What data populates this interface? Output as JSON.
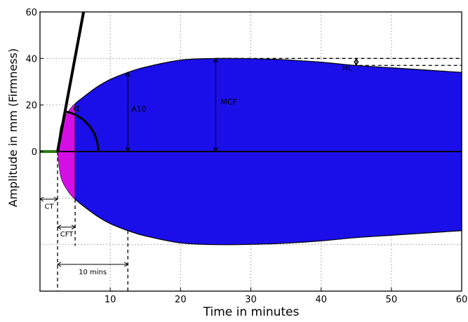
{
  "chart_data": {
    "type": "area",
    "xlabel": "Time in minutes",
    "ylabel": "Amplitude in mm (Firmness)",
    "xlim": [
      0,
      60
    ],
    "ylim": [
      -60,
      60
    ],
    "x_ticks": [
      10,
      20,
      30,
      40,
      50,
      60
    ],
    "y_ticks": [
      0,
      20,
      40,
      60
    ],
    "grid": true,
    "clot_envelope": {
      "x": [
        2.5,
        3,
        4,
        5,
        6,
        8,
        10,
        12.5,
        15,
        20,
        25,
        30,
        35,
        40,
        45,
        50,
        55,
        60
      ],
      "upper": [
        0,
        11,
        17,
        20.5,
        23,
        27.5,
        31,
        34,
        36.3,
        39.3,
        40,
        39.9,
        39.4,
        38.4,
        37,
        36,
        35,
        34
      ],
      "lower": [
        0,
        -11,
        -17,
        -20.5,
        -23,
        -27.5,
        -31,
        -34,
        -36.3,
        -39.3,
        -40,
        -39.9,
        -39.4,
        -38.4,
        -37,
        -36,
        -35,
        -34
      ]
    },
    "colors": {
      "envelope": "#1a0fe8",
      "cft_region": "#d60ee6",
      "ct_segment": "#2a7d14",
      "axis": "#000000",
      "grid": "#999999"
    },
    "reaction_time_min": 2.5,
    "clot_formation_end_min": 5,
    "a10_time_min": 12.5,
    "mcf_time_min": 25,
    "mcf_mm": 40,
    "ml_time_min": 45,
    "alpha_tangent": {
      "x": [
        2.5,
        6.2
      ],
      "y": [
        0,
        60
      ]
    },
    "annotations": {
      "ct": "CT",
      "cft": "CFT",
      "ten_mins": "10 mins",
      "alpha": "α",
      "a10": "A10",
      "mcf": "MCF",
      "ml": "ML"
    }
  }
}
